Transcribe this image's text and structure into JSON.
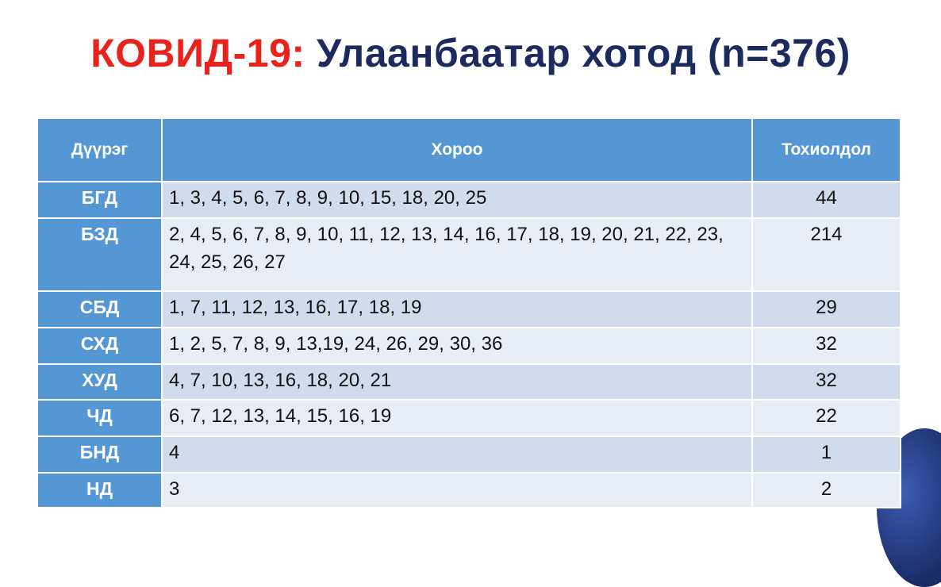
{
  "title": {
    "prefix": "КОВИД-19:",
    "main": "Улаанбаатар хотод (n=376)"
  },
  "colors": {
    "title_red": "#e8231c",
    "title_navy": "#1b2b5e",
    "header_blue": "#5596d5"
  },
  "table": {
    "headers": [
      "Дүүрэг",
      "Хороо",
      "Тохиолдол"
    ],
    "rows": [
      {
        "district": "БГД",
        "khoroo": "1, 3, 4, 5, 6, 7, 8, 9, 10, 15, 18, 20, 25",
        "cases": "44"
      },
      {
        "district": "БЗД",
        "khoroo": "2, 4, 5, 6, 7, 8, 9, 10, 11, 12, 13, 14, 16, 17, 18, 19, 20, 21, 22, 23, 24, 25, 26, 27",
        "cases": "214"
      },
      {
        "district": "СБД",
        "khoroo": "1, 7, 11, 12, 13, 16, 17, 18, 19",
        "cases": "29"
      },
      {
        "district": "СХД",
        "khoroo": "1, 2, 5, 7, 8, 9, 13,19, 24, 26, 29, 30, 36",
        "cases": "32"
      },
      {
        "district": "ХУД",
        "khoroo": "4, 7, 10, 13, 16, 18, 20, 21",
        "cases": "32"
      },
      {
        "district": "ЧД",
        "khoroo": "6, 7, 12, 13, 14, 15, 16, 19",
        "cases": "22"
      },
      {
        "district": "БНД",
        "khoroo": "4",
        "cases": "1"
      },
      {
        "district": "НД",
        "khoroo": "3",
        "cases": "2"
      }
    ]
  }
}
